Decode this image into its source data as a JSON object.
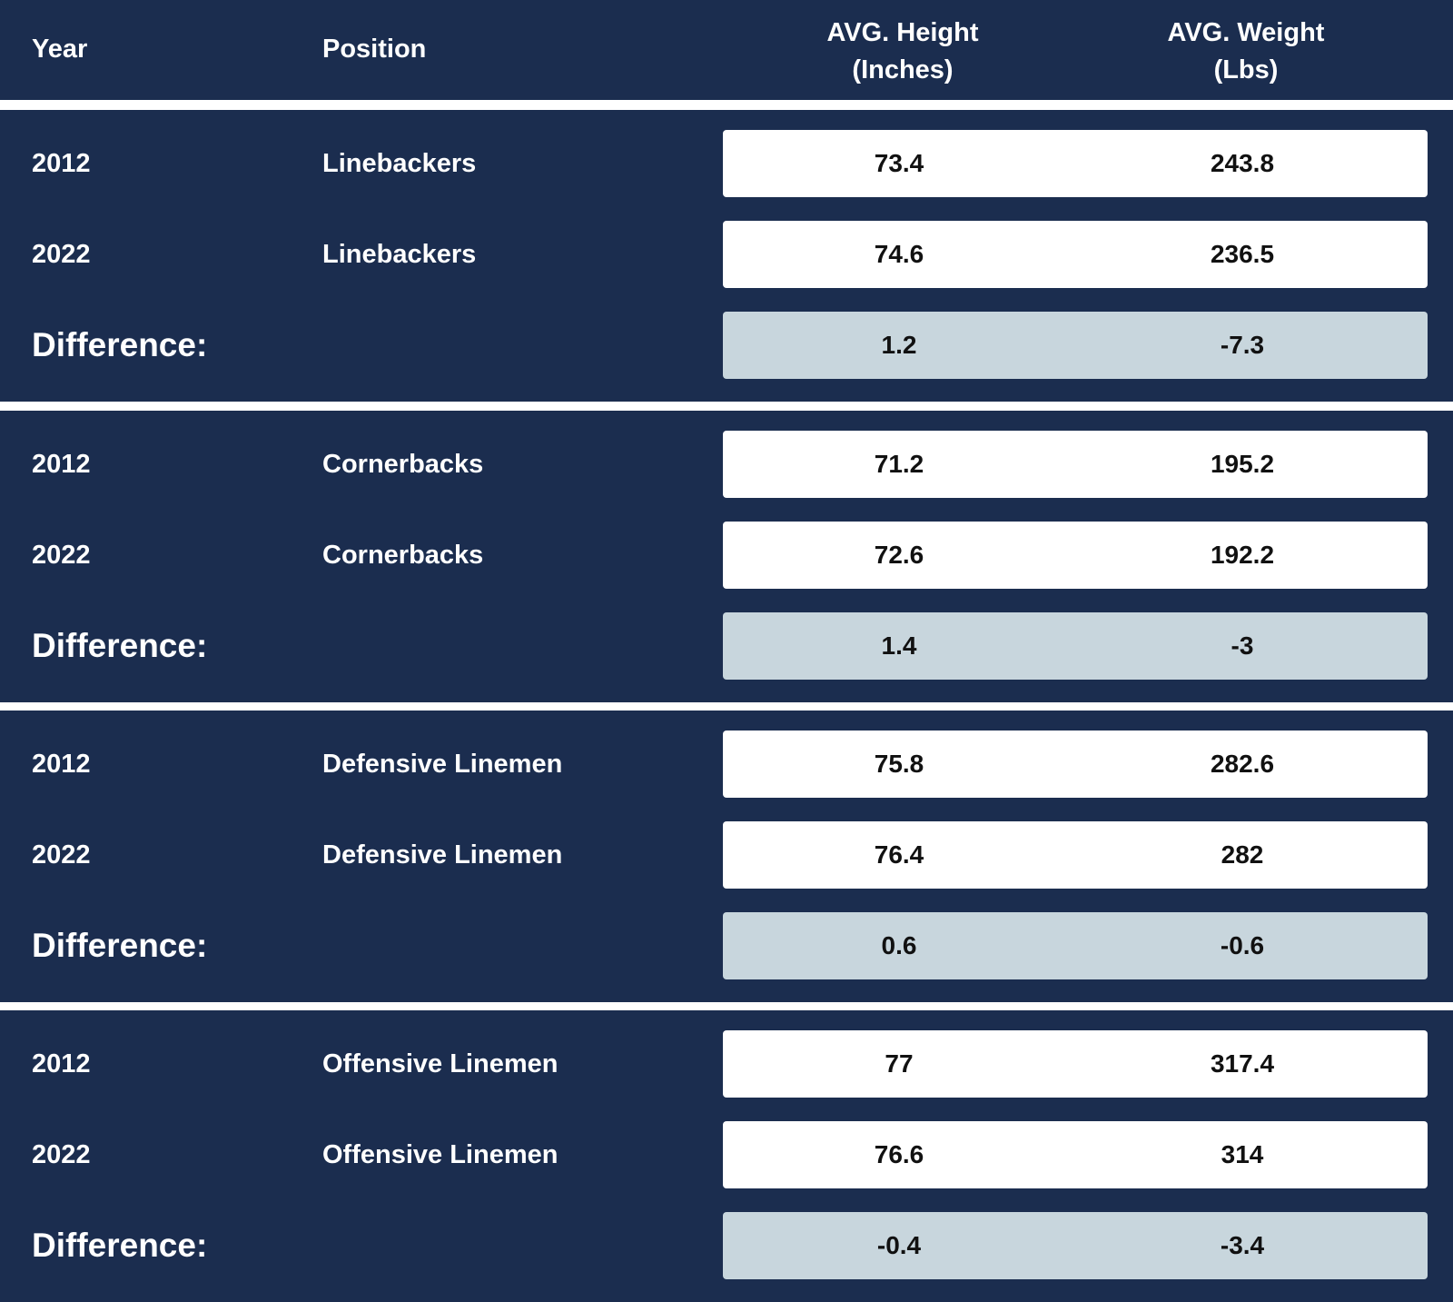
{
  "chart_data": {
    "type": "table",
    "columns": [
      "Year",
      "Position",
      "AVG. Height\n(Inches)",
      "AVG. Weight\n(Lbs)"
    ],
    "column_headers": {
      "year": "Year",
      "position": "Position",
      "height_line1": "AVG. Height",
      "height_line2": "(Inches)",
      "weight_line1": "AVG. Weight",
      "weight_line2": "(Lbs)"
    },
    "difference_label": "Difference:",
    "groups": [
      {
        "rows": [
          {
            "year": "2012",
            "position": "Linebackers",
            "height": "73.4",
            "weight": "243.8"
          },
          {
            "year": "2022",
            "position": "Linebackers",
            "height": "74.6",
            "weight": "236.5"
          }
        ],
        "difference": {
          "height": "1.2",
          "weight": "-7.3"
        }
      },
      {
        "rows": [
          {
            "year": "2012",
            "position": "Cornerbacks",
            "height": "71.2",
            "weight": "195.2"
          },
          {
            "year": "2022",
            "position": "Cornerbacks",
            "height": "72.6",
            "weight": "192.2"
          }
        ],
        "difference": {
          "height": "1.4",
          "weight": "-3"
        }
      },
      {
        "rows": [
          {
            "year": "2012",
            "position": "Defensive Linemen",
            "height": "75.8",
            "weight": "282.6"
          },
          {
            "year": "2022",
            "position": "Defensive Linemen",
            "height": "76.4",
            "weight": "282"
          }
        ],
        "difference": {
          "height": "0.6",
          "weight": "-0.6"
        }
      },
      {
        "rows": [
          {
            "year": "2012",
            "position": "Offensive Linemen",
            "height": "77",
            "weight": "317.4"
          },
          {
            "year": "2022",
            "position": "Offensive Linemen",
            "height": "76.6",
            "weight": "314"
          }
        ],
        "difference": {
          "height": "-0.4",
          "weight": "-3.4"
        }
      }
    ]
  },
  "colors": {
    "background": "#1b2d4f",
    "row_box": "#ffffff",
    "difference_box": "#c8d6dd",
    "header_text": "#ffffff",
    "value_text": "#111111"
  }
}
